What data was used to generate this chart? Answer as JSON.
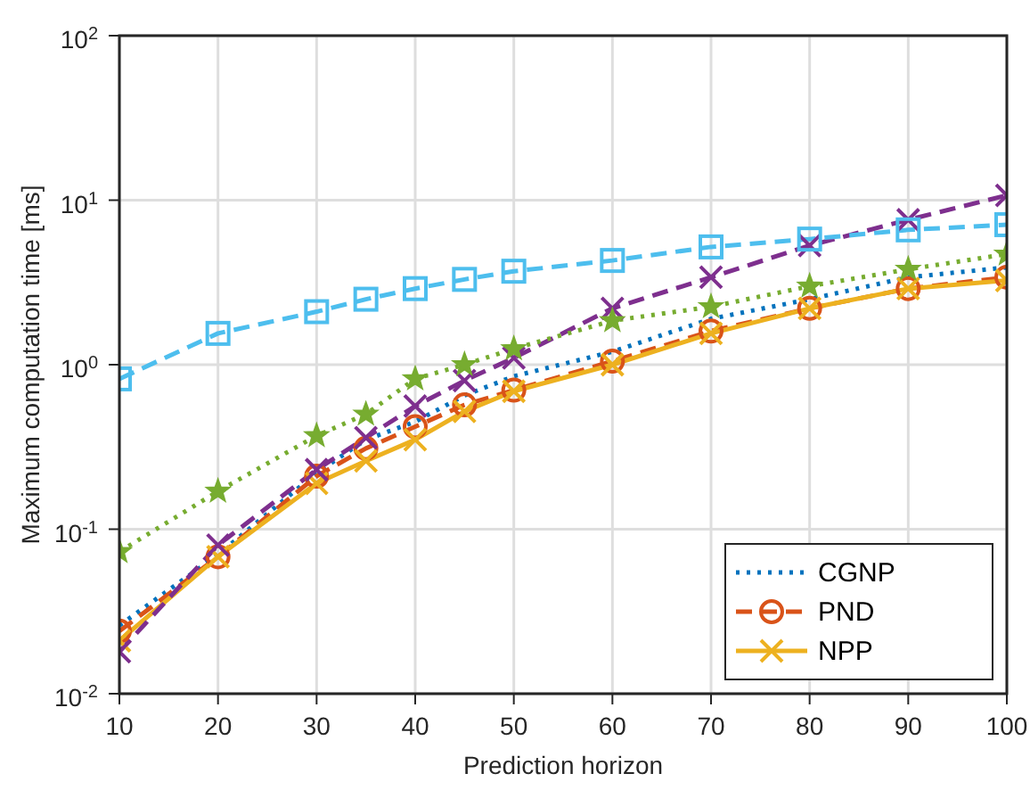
{
  "chart_data": {
    "type": "line",
    "xlabel": "Prediction horizon",
    "ylabel": "Maximum computation time [ms]",
    "x": [
      10,
      20,
      30,
      35,
      40,
      45,
      50,
      60,
      70,
      80,
      90,
      100
    ],
    "series": [
      {
        "name": "CGNP",
        "color": "#0072bd",
        "line_style": "dotted",
        "marker": "none",
        "values": [
          0.026,
          0.07,
          0.22,
          0.35,
          0.45,
          0.65,
          0.85,
          1.2,
          1.9,
          2.5,
          3.4,
          3.9
        ]
      },
      {
        "name": "PND",
        "color": "#d95319",
        "line_style": "dashed",
        "marker": "circle",
        "values": [
          0.024,
          0.068,
          0.21,
          0.31,
          0.42,
          0.57,
          0.7,
          1.05,
          1.6,
          2.2,
          2.9,
          3.4
        ]
      },
      {
        "name": "NPP",
        "color": "#edb120",
        "line_style": "solid",
        "marker": "cross",
        "values": [
          0.021,
          0.068,
          0.19,
          0.26,
          0.35,
          0.52,
          0.69,
          1.0,
          1.55,
          2.2,
          2.9,
          3.25
        ]
      },
      {
        "color": "#7e2f8e",
        "line_style": "dashed",
        "marker": "cross",
        "values": [
          0.018,
          0.08,
          0.23,
          0.36,
          0.56,
          0.8,
          1.1,
          2.2,
          3.4,
          5.3,
          7.6,
          10.7
        ]
      },
      {
        "color": "#77ac30",
        "line_style": "dotted",
        "marker": "star",
        "values": [
          0.073,
          0.17,
          0.37,
          0.5,
          0.82,
          1.0,
          1.25,
          1.85,
          2.25,
          3.0,
          3.8,
          4.7
        ]
      },
      {
        "color": "#4dbeee",
        "line_style": "dashed",
        "marker": "square",
        "values": [
          0.82,
          1.55,
          2.1,
          2.5,
          2.9,
          3.3,
          3.7,
          4.3,
          5.2,
          5.8,
          6.6,
          7.1
        ]
      }
    ],
    "xlim": [
      10,
      100
    ],
    "xticks": [
      10,
      20,
      30,
      40,
      50,
      60,
      70,
      80,
      90,
      100
    ],
    "log": "y",
    "ylim": [
      0.01,
      100
    ],
    "yticks": [
      {
        "value": 0.01,
        "label": "10$^{-2}$"
      },
      {
        "value": 0.1,
        "label": "10$^{-1}$"
      },
      {
        "value": 1,
        "label": "10$^{0}$"
      },
      {
        "value": 10,
        "label": "10$^{1}$"
      },
      {
        "value": 100,
        "label": "10$^{2}$"
      }
    ],
    "grid": true,
    "legend": "bottom right"
  }
}
